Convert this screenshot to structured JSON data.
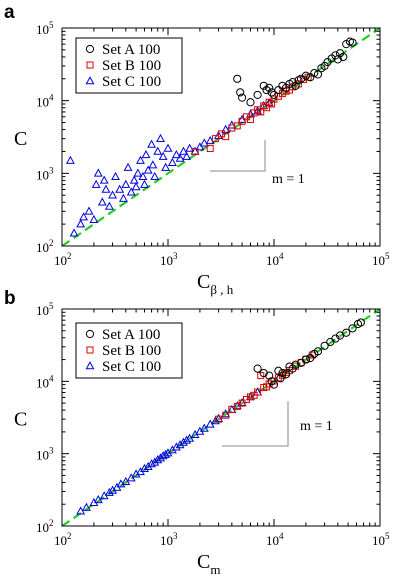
{
  "chart_data": [
    {
      "type": "scatter",
      "panel_label": "a",
      "xlabel": "C",
      "xlabel_sub": "β , h",
      "ylabel": "C",
      "x_scale": "log",
      "y_scale": "log",
      "xlim": [
        100,
        100000
      ],
      "ylim": [
        100,
        100000
      ],
      "tick_values": [
        100,
        1000,
        10000,
        100000
      ],
      "tick_base": "10",
      "tick_exponents": [
        "2",
        "3",
        "4",
        "5"
      ],
      "legend_position": "top-left",
      "reference_line": {
        "label": "",
        "slope": 1,
        "color": "#22cc22",
        "style": "dashed"
      },
      "slope_annotation": "m = 1",
      "series": [
        {
          "name": "Set A 100",
          "marker": "circle",
          "color": "#000000",
          "points": [
            [
              4500,
              20000
            ],
            [
              4800,
              13000
            ],
            [
              5000,
              11000
            ],
            [
              6000,
              9500
            ],
            [
              7000,
              12000
            ],
            [
              8000,
              16000
            ],
            [
              8500,
              14000
            ],
            [
              9000,
              15000
            ],
            [
              9500,
              13000
            ],
            [
              10000,
              12000
            ],
            [
              11000,
              14000
            ],
            [
              12000,
              16000
            ],
            [
              13000,
              15000
            ],
            [
              14000,
              17000
            ],
            [
              15000,
              18000
            ],
            [
              16000,
              16000
            ],
            [
              17000,
              19000
            ],
            [
              18000,
              20000
            ],
            [
              20000,
              22000
            ],
            [
              22000,
              21000
            ],
            [
              24000,
              24000
            ],
            [
              26000,
              23000
            ],
            [
              28000,
              28000
            ],
            [
              30000,
              30000
            ],
            [
              32000,
              34000
            ],
            [
              35000,
              38000
            ],
            [
              38000,
              42000
            ],
            [
              40000,
              37000
            ],
            [
              42000,
              45000
            ],
            [
              45000,
              40000
            ],
            [
              48000,
              60000
            ],
            [
              52000,
              65000
            ],
            [
              55000,
              63000
            ]
          ]
        },
        {
          "name": "Set B 100",
          "marker": "square",
          "color": "#dd0000",
          "points": [
            [
              1800,
              2000
            ],
            [
              2500,
              2200
            ],
            [
              2800,
              3000
            ],
            [
              3200,
              3500
            ],
            [
              3500,
              3200
            ],
            [
              4000,
              4200
            ],
            [
              4500,
              4500
            ],
            [
              5000,
              5200
            ],
            [
              5500,
              6000
            ],
            [
              6000,
              5500
            ],
            [
              6500,
              6800
            ],
            [
              7000,
              7500
            ],
            [
              7500,
              7000
            ],
            [
              8000,
              8500
            ],
            [
              8500,
              8000
            ],
            [
              9000,
              9500
            ],
            [
              9500,
              9000
            ],
            [
              10000,
              10500
            ],
            [
              11000,
              11500
            ],
            [
              12000,
              12500
            ],
            [
              13000,
              13500
            ],
            [
              14000,
              14000
            ],
            [
              15000,
              15500
            ],
            [
              17000,
              17000
            ],
            [
              19000,
              19500
            ],
            [
              21000,
              21000
            ]
          ]
        },
        {
          "name": "Set C 100",
          "marker": "triangle",
          "color": "#0000dd",
          "points": [
            [
              120,
              1500
            ],
            [
              130,
              150
            ],
            [
              150,
              200
            ],
            [
              160,
              250
            ],
            [
              180,
              300
            ],
            [
              200,
              230
            ],
            [
              210,
              700
            ],
            [
              220,
              1000
            ],
            [
              240,
              400
            ],
            [
              250,
              800
            ],
            [
              260,
              600
            ],
            [
              280,
              350
            ],
            [
              300,
              500
            ],
            [
              320,
              900
            ],
            [
              350,
              600
            ],
            [
              380,
              450
            ],
            [
              400,
              700
            ],
            [
              420,
              1200
            ],
            [
              450,
              550
            ],
            [
              480,
              800
            ],
            [
              500,
              650
            ],
            [
              520,
              1000
            ],
            [
              550,
              1500
            ],
            [
              580,
              900
            ],
            [
              600,
              700
            ],
            [
              620,
              1800
            ],
            [
              650,
              1100
            ],
            [
              700,
              2500
            ],
            [
              720,
              1300
            ],
            [
              750,
              900
            ],
            [
              800,
              2000
            ],
            [
              850,
              3000
            ],
            [
              900,
              1700
            ],
            [
              950,
              1200
            ],
            [
              1000,
              2200
            ],
            [
              1100,
              1400
            ],
            [
              1200,
              1800
            ],
            [
              1300,
              1600
            ],
            [
              1400,
              2000
            ],
            [
              1500,
              1700
            ],
            [
              1600,
              2200
            ],
            [
              1800,
              2000
            ],
            [
              2000,
              2300
            ],
            [
              2200,
              2600
            ],
            [
              2500,
              2800
            ],
            [
              3000,
              3300
            ],
            [
              3500,
              4000
            ],
            [
              4000,
              4600
            ],
            [
              5000,
              5500
            ],
            [
              6000,
              6500
            ],
            [
              7000,
              7200
            ],
            [
              8000,
              8500
            ],
            [
              9000,
              9300
            ]
          ]
        }
      ]
    },
    {
      "type": "scatter",
      "panel_label": "b",
      "xlabel": "C",
      "xlabel_sub": "m",
      "ylabel": "C",
      "x_scale": "log",
      "y_scale": "log",
      "xlim": [
        100,
        100000
      ],
      "ylim": [
        100,
        100000
      ],
      "tick_values": [
        100,
        1000,
        10000,
        100000
      ],
      "tick_base": "10",
      "tick_exponents": [
        "2",
        "3",
        "4",
        "5"
      ],
      "legend_position": "top-left",
      "reference_line": {
        "label": "",
        "slope": 1,
        "color": "#22cc22",
        "style": "dashed"
      },
      "slope_annotation": "m = 1",
      "series": [
        {
          "name": "Set A 100",
          "marker": "circle",
          "color": "#000000",
          "points": [
            [
              7000,
              15000
            ],
            [
              8000,
              13000
            ],
            [
              9000,
              12000
            ],
            [
              9500,
              10000
            ],
            [
              10000,
              9000
            ],
            [
              11000,
              14000
            ],
            [
              11500,
              11000
            ],
            [
              12000,
              13000
            ],
            [
              13000,
              12500
            ],
            [
              14000,
              16000
            ],
            [
              15000,
              15000
            ],
            [
              16000,
              17000
            ],
            [
              18000,
              18000
            ],
            [
              20000,
              20000
            ],
            [
              22000,
              21000
            ],
            [
              24000,
              24000
            ],
            [
              26000,
              26000
            ],
            [
              30000,
              31000
            ],
            [
              34000,
              35000
            ],
            [
              38000,
              39000
            ],
            [
              42000,
              43000
            ],
            [
              48000,
              47000
            ],
            [
              55000,
              54000
            ],
            [
              62000,
              62000
            ],
            [
              66000,
              65000
            ]
          ]
        },
        {
          "name": "Set B 100",
          "marker": "square",
          "color": "#dd0000",
          "points": [
            [
              3000,
              3000
            ],
            [
              3500,
              3400
            ],
            [
              4000,
              4100
            ],
            [
              4500,
              4500
            ],
            [
              5000,
              5000
            ],
            [
              5500,
              5600
            ],
            [
              6000,
              6100
            ],
            [
              6500,
              6400
            ],
            [
              7000,
              7100
            ],
            [
              7500,
              12000
            ],
            [
              8000,
              8200
            ],
            [
              8500,
              8400
            ],
            [
              9000,
              9200
            ],
            [
              10000,
              10100
            ],
            [
              11000,
              11200
            ],
            [
              12000,
              12100
            ],
            [
              13000,
              13200
            ],
            [
              14000,
              14100
            ],
            [
              16000,
              16200
            ],
            [
              18000,
              18100
            ],
            [
              20000,
              20200
            ],
            [
              23000,
              23100
            ]
          ]
        },
        {
          "name": "Set C 100",
          "marker": "triangle",
          "color": "#0000dd",
          "points": [
            [
              150,
              160
            ],
            [
              170,
              180
            ],
            [
              200,
              210
            ],
            [
              220,
              230
            ],
            [
              250,
              260
            ],
            [
              280,
              290
            ],
            [
              300,
              310
            ],
            [
              330,
              340
            ],
            [
              360,
              380
            ],
            [
              400,
              410
            ],
            [
              450,
              460
            ],
            [
              500,
              520
            ],
            [
              550,
              560
            ],
            [
              600,
              620
            ],
            [
              650,
              660
            ],
            [
              700,
              720
            ],
            [
              750,
              760
            ],
            [
              800,
              820
            ],
            [
              850,
              870
            ],
            [
              900,
              930
            ],
            [
              950,
              970
            ],
            [
              1000,
              1020
            ],
            [
              1100,
              1120
            ],
            [
              1200,
              1230
            ],
            [
              1300,
              1320
            ],
            [
              1400,
              1430
            ],
            [
              1500,
              1530
            ],
            [
              1600,
              1620
            ],
            [
              1800,
              1830
            ],
            [
              2000,
              2030
            ],
            [
              2200,
              2230
            ],
            [
              2500,
              2540
            ],
            [
              2800,
              2830
            ],
            [
              3000,
              3050
            ],
            [
              3500,
              3540
            ],
            [
              4000,
              4050
            ],
            [
              4500,
              4560
            ],
            [
              5000,
              5060
            ],
            [
              6000,
              6100
            ],
            [
              7000,
              7080
            ]
          ]
        }
      ]
    }
  ]
}
